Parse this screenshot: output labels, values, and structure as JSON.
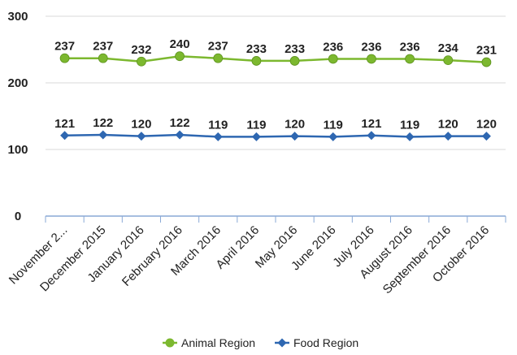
{
  "chart_data": {
    "type": "line",
    "categories": [
      "November 2...",
      "December 2015",
      "January 2016",
      "February 2016",
      "March 2016",
      "April 2016",
      "May 2016",
      "June 2016",
      "July 2016",
      "August 2016",
      "September 2016",
      "October 2016"
    ],
    "series": [
      {
        "name": "Animal Region",
        "color": "#7cb82f",
        "marker": "circle",
        "values": [
          237,
          237,
          232,
          240,
          237,
          233,
          233,
          236,
          236,
          236,
          234,
          231
        ],
        "labels": [
          "237",
          "237",
          "232",
          "240",
          "237",
          "233",
          "233",
          "236",
          "236",
          "236",
          "234",
          "231"
        ]
      },
      {
        "name": "Food Region",
        "color": "#2e67b1",
        "marker": "diamond",
        "values": [
          121,
          122,
          120,
          122,
          119,
          119,
          120,
          119,
          121,
          119,
          120,
          120
        ],
        "labels": [
          "121",
          "122",
          "120",
          "122",
          "119",
          "119",
          "120",
          "119",
          "121",
          "119",
          "120",
          "120"
        ]
      }
    ],
    "yticks": [
      0,
      100,
      200,
      300
    ],
    "ylim": [
      0,
      300
    ],
    "grid": true,
    "legend_position": "bottom",
    "title": "",
    "xlabel": "",
    "ylabel": ""
  }
}
